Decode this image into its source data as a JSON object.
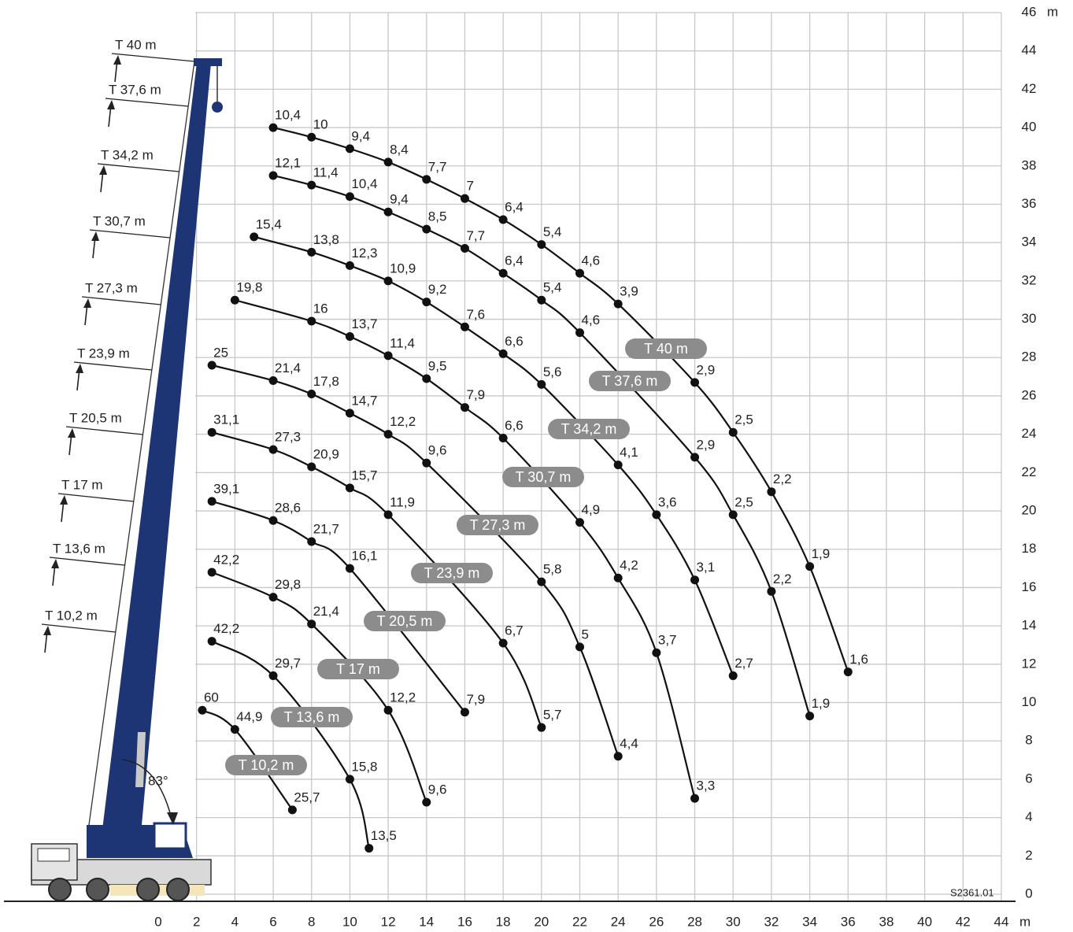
{
  "chart_data": {
    "type": "load-chart",
    "xlim": [
      0,
      44
    ],
    "ylim": [
      0,
      46
    ],
    "xticks": [
      0,
      2,
      4,
      6,
      8,
      10,
      12,
      14,
      16,
      18,
      20,
      22,
      24,
      26,
      28,
      30,
      32,
      34,
      36,
      38,
      40,
      42,
      44
    ],
    "yticks": [
      0,
      2,
      4,
      6,
      8,
      10,
      12,
      14,
      16,
      18,
      20,
      22,
      24,
      26,
      28,
      30,
      32,
      34,
      36,
      38,
      40,
      42,
      44,
      46
    ],
    "x_unit": "m",
    "y_unit": "m",
    "annotation": "83°",
    "code": "S2361.01",
    "series": [
      {
        "name": "T 40 m",
        "x": [
          6,
          8,
          10,
          12,
          14,
          16,
          18,
          20,
          22,
          24,
          28,
          30,
          32,
          34,
          36
        ],
        "values": [
          40,
          39.5,
          38.9,
          38.2,
          37.3,
          36.3,
          35.2,
          33.9,
          32.4,
          30.8,
          26.7,
          24.1,
          21,
          17.1,
          11.6
        ],
        "loads": [
          10.4,
          10,
          9.4,
          8.4,
          7.7,
          7,
          6.4,
          5.4,
          4.6,
          3.9,
          2.9,
          2.5,
          2.2,
          1.9,
          1.6
        ],
        "load_labels": [
          "10,4",
          "10",
          "9,4",
          "8,4",
          "7,7",
          "7",
          "6,4",
          "5,4",
          "4,6",
          "3,9",
          "2,9",
          "2,5",
          "2,2",
          "1,9",
          "1,6"
        ]
      },
      {
        "name": "T 37,6 m",
        "x": [
          6,
          8,
          10,
          12,
          14,
          16,
          18,
          20,
          22,
          28,
          30,
          32,
          34
        ],
        "values": [
          37.5,
          37,
          36.4,
          35.6,
          34.7,
          33.7,
          32.4,
          31,
          29.3,
          22.8,
          19.8,
          15.8,
          9.3
        ],
        "loads": [
          12.1,
          11.4,
          10.4,
          9.4,
          8.5,
          7.7,
          6.4,
          5.4,
          4.6,
          2.9,
          2.5,
          2.2,
          1.9
        ],
        "load_labels": [
          "12,1",
          "11,4",
          "10,4",
          "9,4",
          "8,5",
          "7,7",
          "6,4",
          "5,4",
          "4,6",
          "2,9",
          "2,5",
          "2,2",
          "1,9"
        ]
      },
      {
        "name": "T 34,2 m",
        "x": [
          5,
          8,
          10,
          12,
          14,
          16,
          18,
          20,
          24,
          26,
          28,
          30
        ],
        "values": [
          34.3,
          33.5,
          32.8,
          32,
          30.9,
          29.6,
          28.2,
          26.6,
          22.4,
          19.8,
          16.4,
          11.4
        ],
        "loads": [
          15.4,
          13.8,
          12.3,
          10.9,
          9.2,
          7.6,
          6.6,
          5.6,
          4.1,
          3.6,
          3.1,
          2.7
        ],
        "load_labels": [
          "15,4",
          "13,8",
          "12,3",
          "10,9",
          "9,2",
          "7,6",
          "6,6",
          "5,6",
          "4,1",
          "3,6",
          "3,1",
          "2,7"
        ]
      },
      {
        "name": "T 30,7 m",
        "x": [
          4,
          8,
          10,
          12,
          14,
          16,
          18,
          22,
          24,
          26,
          28
        ],
        "values": [
          31,
          29.9,
          29.1,
          28.1,
          26.9,
          25.4,
          23.8,
          19.4,
          16.5,
          12.6,
          5
        ],
        "loads": [
          19.8,
          16,
          13.7,
          11.4,
          9.5,
          7.9,
          6.6,
          4.9,
          4.2,
          3.7,
          3.3
        ],
        "load_labels": [
          "19,8",
          "16",
          "13,7",
          "11,4",
          "9,5",
          "7,9",
          "6,6",
          "4,9",
          "4,2",
          "3,7",
          "3,3"
        ]
      },
      {
        "name": "T 27,3 m",
        "x": [
          2.8,
          6,
          8,
          10,
          12,
          14,
          20,
          22,
          24
        ],
        "values": [
          27.6,
          26.8,
          26.1,
          25.1,
          24,
          22.5,
          16.3,
          12.9,
          7.2
        ],
        "loads": [
          25,
          21.4,
          17.8,
          14.7,
          12.2,
          9.6,
          5.8,
          5,
          4.4
        ],
        "load_labels": [
          "25",
          "21,4",
          "17,8",
          "14,7",
          "12,2",
          "9,6",
          "5,8",
          "5",
          "4,4"
        ]
      },
      {
        "name": "T 23,9 m",
        "x": [
          2.8,
          6,
          8,
          10,
          12,
          18,
          20
        ],
        "values": [
          24.1,
          23.2,
          22.3,
          21.2,
          19.8,
          13.1,
          8.7
        ],
        "loads": [
          31.1,
          27.3,
          20.9,
          15.7,
          11.9,
          6.7,
          5.7
        ],
        "load_labels": [
          "31,1",
          "27,3",
          "20,9",
          "15,7",
          "11,9",
          "6,7",
          "5,7"
        ]
      },
      {
        "name": "T 20,5 m",
        "x": [
          2.8,
          6,
          8,
          10,
          16
        ],
        "values": [
          20.5,
          19.5,
          18.4,
          17,
          9.5
        ],
        "loads": [
          39.1,
          28.6,
          21.7,
          16.1,
          7.9
        ],
        "load_labels": [
          "39,1",
          "28,6",
          "21,7",
          "16,1",
          "7,9"
        ]
      },
      {
        "name": "T 17 m",
        "x": [
          2.8,
          6,
          8,
          12,
          14
        ],
        "values": [
          16.8,
          15.5,
          14.1,
          9.6,
          4.8
        ],
        "loads": [
          42.2,
          29.8,
          21.4,
          12.2,
          9.6
        ],
        "load_labels": [
          "42,2",
          "29,8",
          "21,4",
          "12,2",
          "9,6"
        ]
      },
      {
        "name": "T 13,6 m",
        "x": [
          2.8,
          6,
          10,
          11
        ],
        "values": [
          13.2,
          11.4,
          6,
          2.4
        ],
        "loads": [
          42.2,
          29.7,
          15.8,
          13.5
        ],
        "load_labels": [
          "42,2",
          "29,7",
          "15,8",
          "13,5"
        ]
      },
      {
        "name": "T 10,2 m",
        "x": [
          2.3,
          4,
          7
        ],
        "values": [
          9.6,
          8.6,
          4.4
        ],
        "loads": [
          60,
          44.9,
          25.7
        ],
        "load_labels": [
          "60",
          "44,9",
          "25,7"
        ]
      }
    ]
  }
}
